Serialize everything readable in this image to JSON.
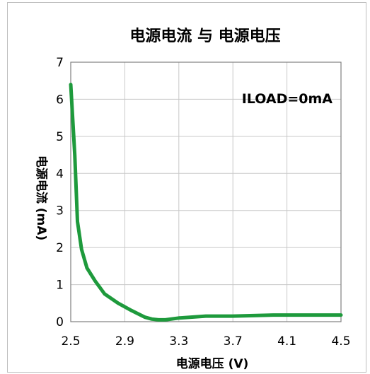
{
  "chart_data": {
    "type": "line",
    "title": "电源电流 与 电源电压",
    "xlabel": "电源电压 (V)",
    "ylabel": "电源电流 (mA)",
    "annotation": "ILOAD=0mA",
    "xlim": [
      2.5,
      4.5
    ],
    "ylim": [
      0,
      7
    ],
    "x_ticks": [
      "2.5",
      "2.9",
      "3.3",
      "3.7",
      "4.1",
      "4.5"
    ],
    "y_ticks": [
      "0",
      "1",
      "2",
      "3",
      "4",
      "5",
      "6",
      "7"
    ],
    "grid": true,
    "series": [
      {
        "color": "#1e9a3c",
        "x": [
          2.5,
          2.53,
          2.55,
          2.58,
          2.62,
          2.68,
          2.75,
          2.85,
          2.95,
          3.05,
          3.1,
          3.15,
          3.2,
          3.3,
          3.5,
          3.7,
          4.0,
          4.3,
          4.5
        ],
        "y": [
          6.4,
          4.5,
          2.7,
          1.95,
          1.45,
          1.1,
          0.75,
          0.5,
          0.3,
          0.12,
          0.07,
          0.05,
          0.05,
          0.1,
          0.15,
          0.15,
          0.18,
          0.18,
          0.18
        ]
      }
    ]
  }
}
